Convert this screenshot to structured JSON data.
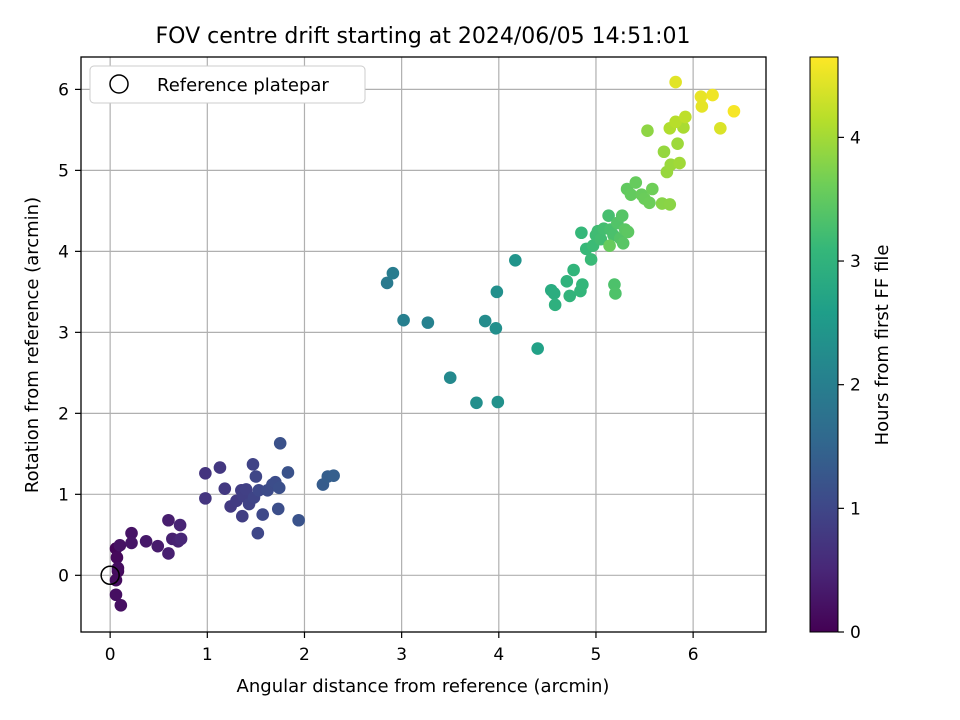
{
  "chart_data": {
    "type": "scatter",
    "title": "FOV centre drift starting at 2024/06/05 14:51:01",
    "xlabel": "Angular distance from reference (arcmin)",
    "ylabel": "Rotation from reference (arcmin)",
    "xlim": [
      -0.3,
      6.75
    ],
    "ylim": [
      -0.7,
      6.4
    ],
    "xticks": [
      0,
      1,
      2,
      3,
      4,
      5,
      6
    ],
    "yticks": [
      0,
      1,
      2,
      3,
      4,
      5,
      6
    ],
    "grid": true,
    "legend": {
      "placement": "top-left",
      "entries": [
        "Reference platepar"
      ]
    },
    "reference_point": {
      "x": 0,
      "y": 0
    },
    "colorbar": {
      "label": "Hours from first FF file",
      "range": [
        0,
        4.65
      ],
      "ticks": [
        0,
        1,
        2,
        3,
        4
      ],
      "colormap": [
        "#440154",
        "#482878",
        "#3e4989",
        "#31688e",
        "#26828e",
        "#1f9e89",
        "#35b779",
        "#6ece58",
        "#b5de2b",
        "#fde725"
      ]
    },
    "points": [
      {
        "x": 0.06,
        "y": 0.33,
        "h": 0.05
      },
      {
        "x": 0.07,
        "y": 0.22,
        "h": 0.1
      },
      {
        "x": 0.08,
        "y": 0.05,
        "h": 0.12
      },
      {
        "x": 0.06,
        "y": -0.06,
        "h": 0.14
      },
      {
        "x": 0.08,
        "y": 0.09,
        "h": 0.16
      },
      {
        "x": 0.06,
        "y": -0.24,
        "h": 0.18
      },
      {
        "x": 0.11,
        "y": -0.37,
        "h": 0.2
      },
      {
        "x": 0.1,
        "y": 0.37,
        "h": 0.22
      },
      {
        "x": 0.22,
        "y": 0.52,
        "h": 0.24
      },
      {
        "x": 0.22,
        "y": 0.4,
        "h": 0.26
      },
      {
        "x": 0.37,
        "y": 0.42,
        "h": 0.3
      },
      {
        "x": 0.49,
        "y": 0.36,
        "h": 0.35
      },
      {
        "x": 0.6,
        "y": 0.68,
        "h": 0.38
      },
      {
        "x": 0.6,
        "y": 0.27,
        "h": 0.4
      },
      {
        "x": 0.64,
        "y": 0.45,
        "h": 0.42
      },
      {
        "x": 0.7,
        "y": 0.42,
        "h": 0.45
      },
      {
        "x": 0.72,
        "y": 0.62,
        "h": 0.48
      },
      {
        "x": 0.73,
        "y": 0.45,
        "h": 0.5
      },
      {
        "x": 0.98,
        "y": 1.26,
        "h": 0.7
      },
      {
        "x": 0.98,
        "y": 0.95,
        "h": 0.72
      },
      {
        "x": 1.13,
        "y": 1.33,
        "h": 0.75
      },
      {
        "x": 1.18,
        "y": 1.07,
        "h": 0.78
      },
      {
        "x": 1.24,
        "y": 0.85,
        "h": 0.8
      },
      {
        "x": 1.3,
        "y": 0.92,
        "h": 0.82
      },
      {
        "x": 1.35,
        "y": 1.05,
        "h": 0.84
      },
      {
        "x": 1.36,
        "y": 0.73,
        "h": 0.86
      },
      {
        "x": 1.37,
        "y": 0.98,
        "h": 0.88
      },
      {
        "x": 1.4,
        "y": 1.06,
        "h": 0.9
      },
      {
        "x": 1.43,
        "y": 0.88,
        "h": 0.92
      },
      {
        "x": 1.47,
        "y": 1.37,
        "h": 0.94
      },
      {
        "x": 1.48,
        "y": 0.96,
        "h": 0.96
      },
      {
        "x": 1.5,
        "y": 1.22,
        "h": 0.98
      },
      {
        "x": 1.52,
        "y": 0.52,
        "h": 1.0
      },
      {
        "x": 1.53,
        "y": 1.05,
        "h": 1.02
      },
      {
        "x": 1.57,
        "y": 0.75,
        "h": 1.04
      },
      {
        "x": 1.62,
        "y": 1.05,
        "h": 1.06
      },
      {
        "x": 1.67,
        "y": 1.12,
        "h": 1.08
      },
      {
        "x": 1.7,
        "y": 1.15,
        "h": 1.1
      },
      {
        "x": 1.73,
        "y": 0.82,
        "h": 1.12
      },
      {
        "x": 1.74,
        "y": 1.08,
        "h": 1.14
      },
      {
        "x": 1.75,
        "y": 1.63,
        "h": 1.16
      },
      {
        "x": 1.83,
        "y": 1.27,
        "h": 1.18
      },
      {
        "x": 1.94,
        "y": 0.68,
        "h": 1.2
      },
      {
        "x": 2.19,
        "y": 1.12,
        "h": 1.35
      },
      {
        "x": 2.24,
        "y": 1.22,
        "h": 1.38
      },
      {
        "x": 2.3,
        "y": 1.23,
        "h": 1.4
      },
      {
        "x": 2.85,
        "y": 3.61,
        "h": 1.9
      },
      {
        "x": 2.91,
        "y": 3.73,
        "h": 1.95
      },
      {
        "x": 3.02,
        "y": 3.15,
        "h": 2.0
      },
      {
        "x": 3.27,
        "y": 3.12,
        "h": 2.05
      },
      {
        "x": 3.5,
        "y": 2.44,
        "h": 2.2
      },
      {
        "x": 3.77,
        "y": 2.13,
        "h": 2.3
      },
      {
        "x": 3.86,
        "y": 3.14,
        "h": 2.25
      },
      {
        "x": 3.97,
        "y": 3.05,
        "h": 2.3
      },
      {
        "x": 3.98,
        "y": 3.5,
        "h": 2.32
      },
      {
        "x": 3.99,
        "y": 2.14,
        "h": 2.35
      },
      {
        "x": 4.17,
        "y": 3.89,
        "h": 2.4
      },
      {
        "x": 4.4,
        "y": 2.8,
        "h": 2.65
      },
      {
        "x": 4.54,
        "y": 3.52,
        "h": 2.85
      },
      {
        "x": 4.57,
        "y": 3.48,
        "h": 2.9
      },
      {
        "x": 4.58,
        "y": 3.34,
        "h": 2.95
      },
      {
        "x": 4.7,
        "y": 3.63,
        "h": 3.0
      },
      {
        "x": 4.73,
        "y": 3.45,
        "h": 3.02
      },
      {
        "x": 4.77,
        "y": 3.77,
        "h": 3.04
      },
      {
        "x": 4.84,
        "y": 3.51,
        "h": 3.06
      },
      {
        "x": 4.86,
        "y": 3.59,
        "h": 3.08
      },
      {
        "x": 4.85,
        "y": 4.23,
        "h": 3.1
      },
      {
        "x": 4.9,
        "y": 4.03,
        "h": 3.12
      },
      {
        "x": 4.95,
        "y": 3.9,
        "h": 3.14
      },
      {
        "x": 4.97,
        "y": 4.07,
        "h": 3.16
      },
      {
        "x": 5.0,
        "y": 4.2,
        "h": 3.18
      },
      {
        "x": 5.02,
        "y": 4.25,
        "h": 3.2
      },
      {
        "x": 5.05,
        "y": 4.15,
        "h": 3.22
      },
      {
        "x": 5.08,
        "y": 4.28,
        "h": 3.24
      },
      {
        "x": 5.13,
        "y": 4.44,
        "h": 3.26
      },
      {
        "x": 5.15,
        "y": 4.27,
        "h": 3.28
      },
      {
        "x": 5.18,
        "y": 4.2,
        "h": 3.3
      },
      {
        "x": 5.19,
        "y": 3.59,
        "h": 3.32
      },
      {
        "x": 5.2,
        "y": 3.48,
        "h": 3.34
      },
      {
        "x": 5.22,
        "y": 4.35,
        "h": 3.36
      },
      {
        "x": 5.25,
        "y": 4.16,
        "h": 3.38
      },
      {
        "x": 5.27,
        "y": 4.44,
        "h": 3.4
      },
      {
        "x": 5.28,
        "y": 4.1,
        "h": 3.42
      },
      {
        "x": 5.3,
        "y": 4.27,
        "h": 3.44
      },
      {
        "x": 5.33,
        "y": 4.24,
        "h": 3.46
      },
      {
        "x": 5.14,
        "y": 4.07,
        "h": 3.55
      },
      {
        "x": 5.32,
        "y": 4.77,
        "h": 3.5
      },
      {
        "x": 5.36,
        "y": 4.7,
        "h": 3.52
      },
      {
        "x": 5.41,
        "y": 4.85,
        "h": 3.54
      },
      {
        "x": 5.47,
        "y": 4.7,
        "h": 3.56
      },
      {
        "x": 5.5,
        "y": 4.65,
        "h": 3.58
      },
      {
        "x": 5.55,
        "y": 4.6,
        "h": 3.6
      },
      {
        "x": 5.58,
        "y": 4.77,
        "h": 3.62
      },
      {
        "x": 5.53,
        "y": 5.49,
        "h": 3.85
      },
      {
        "x": 5.68,
        "y": 4.59,
        "h": 3.8
      },
      {
        "x": 5.76,
        "y": 4.58,
        "h": 3.82
      },
      {
        "x": 5.7,
        "y": 5.23,
        "h": 3.9
      },
      {
        "x": 5.73,
        "y": 4.98,
        "h": 3.92
      },
      {
        "x": 5.77,
        "y": 5.07,
        "h": 3.94
      },
      {
        "x": 5.84,
        "y": 5.33,
        "h": 3.96
      },
      {
        "x": 5.86,
        "y": 5.09,
        "h": 3.98
      },
      {
        "x": 5.9,
        "y": 5.53,
        "h": 4.05
      },
      {
        "x": 5.76,
        "y": 5.52,
        "h": 4.1
      },
      {
        "x": 5.82,
        "y": 5.6,
        "h": 4.15
      },
      {
        "x": 5.92,
        "y": 5.66,
        "h": 4.2
      },
      {
        "x": 5.82,
        "y": 6.09,
        "h": 4.45
      },
      {
        "x": 6.08,
        "y": 5.91,
        "h": 4.5
      },
      {
        "x": 6.09,
        "y": 5.79,
        "h": 4.48
      },
      {
        "x": 6.2,
        "y": 5.93,
        "h": 4.55
      },
      {
        "x": 6.28,
        "y": 5.52,
        "h": 4.4
      },
      {
        "x": 6.42,
        "y": 5.73,
        "h": 4.6
      }
    ]
  }
}
